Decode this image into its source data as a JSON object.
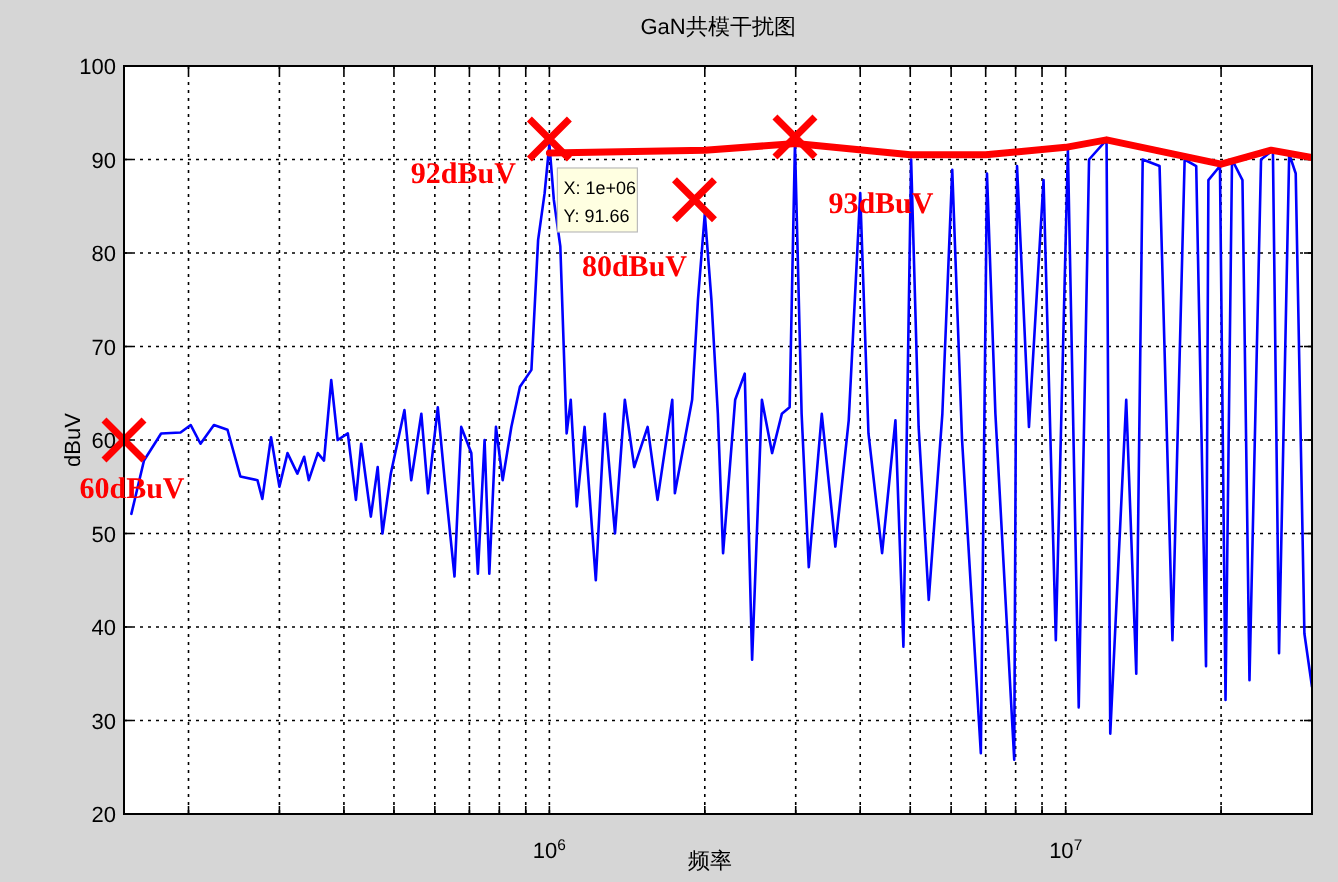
{
  "chart_data": {
    "type": "line",
    "title": "GaN共模干扰图",
    "xlabel": "频率",
    "ylabel": "dBuV",
    "log": "x",
    "grid": true,
    "xlim": [
      150000,
      30000000
    ],
    "ylim": [
      20,
      100
    ],
    "xticks": [
      {
        "value": 200000,
        "label": null
      },
      {
        "value": 300000,
        "label": null
      },
      {
        "value": 400000,
        "label": null
      },
      {
        "value": 500000,
        "label": null
      },
      {
        "value": 600000,
        "label": null
      },
      {
        "value": 700000,
        "label": null
      },
      {
        "value": 800000,
        "label": null
      },
      {
        "value": 900000,
        "label": null
      },
      {
        "value": 1000000,
        "label": "10$^{6}$"
      },
      {
        "value": 2000000,
        "label": null
      },
      {
        "value": 3000000,
        "label": null
      },
      {
        "value": 4000000,
        "label": null
      },
      {
        "value": 5000000,
        "label": null
      },
      {
        "value": 6000000,
        "label": null
      },
      {
        "value": 7000000,
        "label": null
      },
      {
        "value": 8000000,
        "label": null
      },
      {
        "value": 9000000,
        "label": null
      },
      {
        "value": 10000000,
        "label": "10$^{7}$"
      },
      {
        "value": 20000000,
        "label": null
      }
    ],
    "yticks": [
      20,
      30,
      40,
      50,
      60,
      70,
      80,
      90,
      100
    ],
    "series": [
      {
        "color": "#0000ff",
        "x": [
          155000,
          164000,
          177000,
          193000,
          202000,
          211000,
          224000,
          238000,
          252000,
          272000,
          278000,
          289000,
          300000,
          311000,
          325000,
          335000,
          342000,
          356000,
          366000,
          378000,
          389000,
          407000,
          422000,
          432000,
          451000,
          465000,
          475000,
          493000,
          524000,
          540000,
          565000,
          582000,
          608000,
          627000,
          655000,
          675000,
          706000,
          727000,
          749000,
          765000,
          788000,
          812000,
          844000,
          877000,
          923000,
          951000,
          979000,
          1000000,
          1020000,
          1050000,
          1080000,
          1100000,
          1130000,
          1170000,
          1230000,
          1280000,
          1340000,
          1400000,
          1460000,
          1550000,
          1620000,
          1730000,
          1750000,
          1890000,
          1940000,
          2000000,
          2060000,
          2120000,
          2170000,
          2290000,
          2390000,
          2470000,
          2580000,
          2700000,
          2820000,
          2920000,
          2990000,
          3080000,
          3180000,
          3370000,
          3580000,
          3800000,
          4000000,
          4150000,
          4410000,
          4680000,
          4850000,
          5020000,
          5190000,
          5430000,
          5770000,
          6030000,
          6300000,
          6850000,
          7040000,
          7310000,
          7950000,
          8050000,
          8490000,
          9060000,
          9570000,
          10100000,
          10600000,
          11100000,
          12000000,
          12200000,
          13100000,
          13700000,
          14100000,
          15200000,
          16100000,
          17000000,
          17900000,
          18700000,
          18900000,
          19900000,
          20400000,
          21000000,
          22000000,
          22700000,
          23900000,
          25200000,
          25900000,
          27100000,
          27900000,
          29000000,
          30000000
        ],
        "values": [
          52.1,
          57.8,
          60.7,
          60.8,
          61.6,
          59.6,
          61.6,
          61.1,
          56.1,
          55.7,
          53.7,
          60.3,
          55.0,
          58.6,
          56.4,
          58.2,
          55.7,
          58.6,
          57.8,
          66.4,
          60.0,
          60.7,
          53.6,
          59.6,
          51.8,
          57.1,
          50.0,
          56.4,
          63.2,
          55.7,
          62.8,
          54.3,
          63.5,
          55.7,
          45.4,
          61.4,
          58.6,
          45.7,
          60.0,
          45.7,
          61.4,
          55.7,
          61.4,
          65.7,
          67.5,
          81.4,
          86.4,
          91.66,
          85.7,
          80.7,
          60.7,
          64.3,
          52.9,
          61.4,
          45.0,
          62.8,
          50.0,
          64.3,
          57.1,
          61.4,
          53.6,
          64.3,
          54.3,
          64.3,
          75.0,
          84.2,
          75.0,
          62.8,
          47.9,
          64.3,
          67.1,
          36.5,
          64.3,
          58.6,
          62.8,
          63.5,
          91.7,
          62.8,
          46.4,
          62.8,
          48.6,
          62.1,
          86.4,
          60.7,
          47.9,
          62.1,
          37.9,
          90.0,
          61.4,
          42.9,
          62.8,
          88.9,
          60.0,
          26.5,
          88.5,
          62.8,
          25.8,
          89.3,
          61.4,
          87.8,
          38.6,
          91.0,
          31.4,
          90.0,
          92.1,
          28.6,
          64.3,
          35.0,
          90.0,
          89.3,
          38.6,
          90.0,
          89.3,
          35.8,
          87.8,
          89.3,
          32.2,
          90.0,
          87.8,
          34.3,
          90.0,
          91.0,
          37.2,
          90.6,
          88.5,
          39.3,
          33.6
        ]
      },
      {
        "color": "#ff0000",
        "x": [
          1000000,
          2000000,
          3000000,
          5000000,
          7000000,
          10000000,
          12000000,
          20000000,
          25000000,
          30000000
        ],
        "values": [
          90.7,
          91.0,
          91.7,
          90.5,
          90.5,
          91.3,
          92.1,
          89.5,
          91.0,
          90.2
        ]
      },
      {
        "type": "scatter",
        "marker": "cross",
        "color": "#ff0000",
        "x": [
          150000,
          1000000,
          1910000,
          2990000
        ],
        "values": [
          60.0,
          92.2,
          85.7,
          92.4
        ]
      }
    ],
    "annotations": [
      {
        "text": "60dBuV",
        "x": 150000,
        "y": 60.0
      },
      {
        "text": "92dBuV",
        "x": 1000000,
        "y": 92.2
      },
      {
        "text": "80dBuV",
        "x": 1910000,
        "y": 85.7
      },
      {
        "text": "93dBuV",
        "x": 2990000,
        "y": 92.4
      },
      {
        "text": "X: 1e+06\nY: 91.66",
        "x": 1000000,
        "y": 91.66
      }
    ]
  }
}
